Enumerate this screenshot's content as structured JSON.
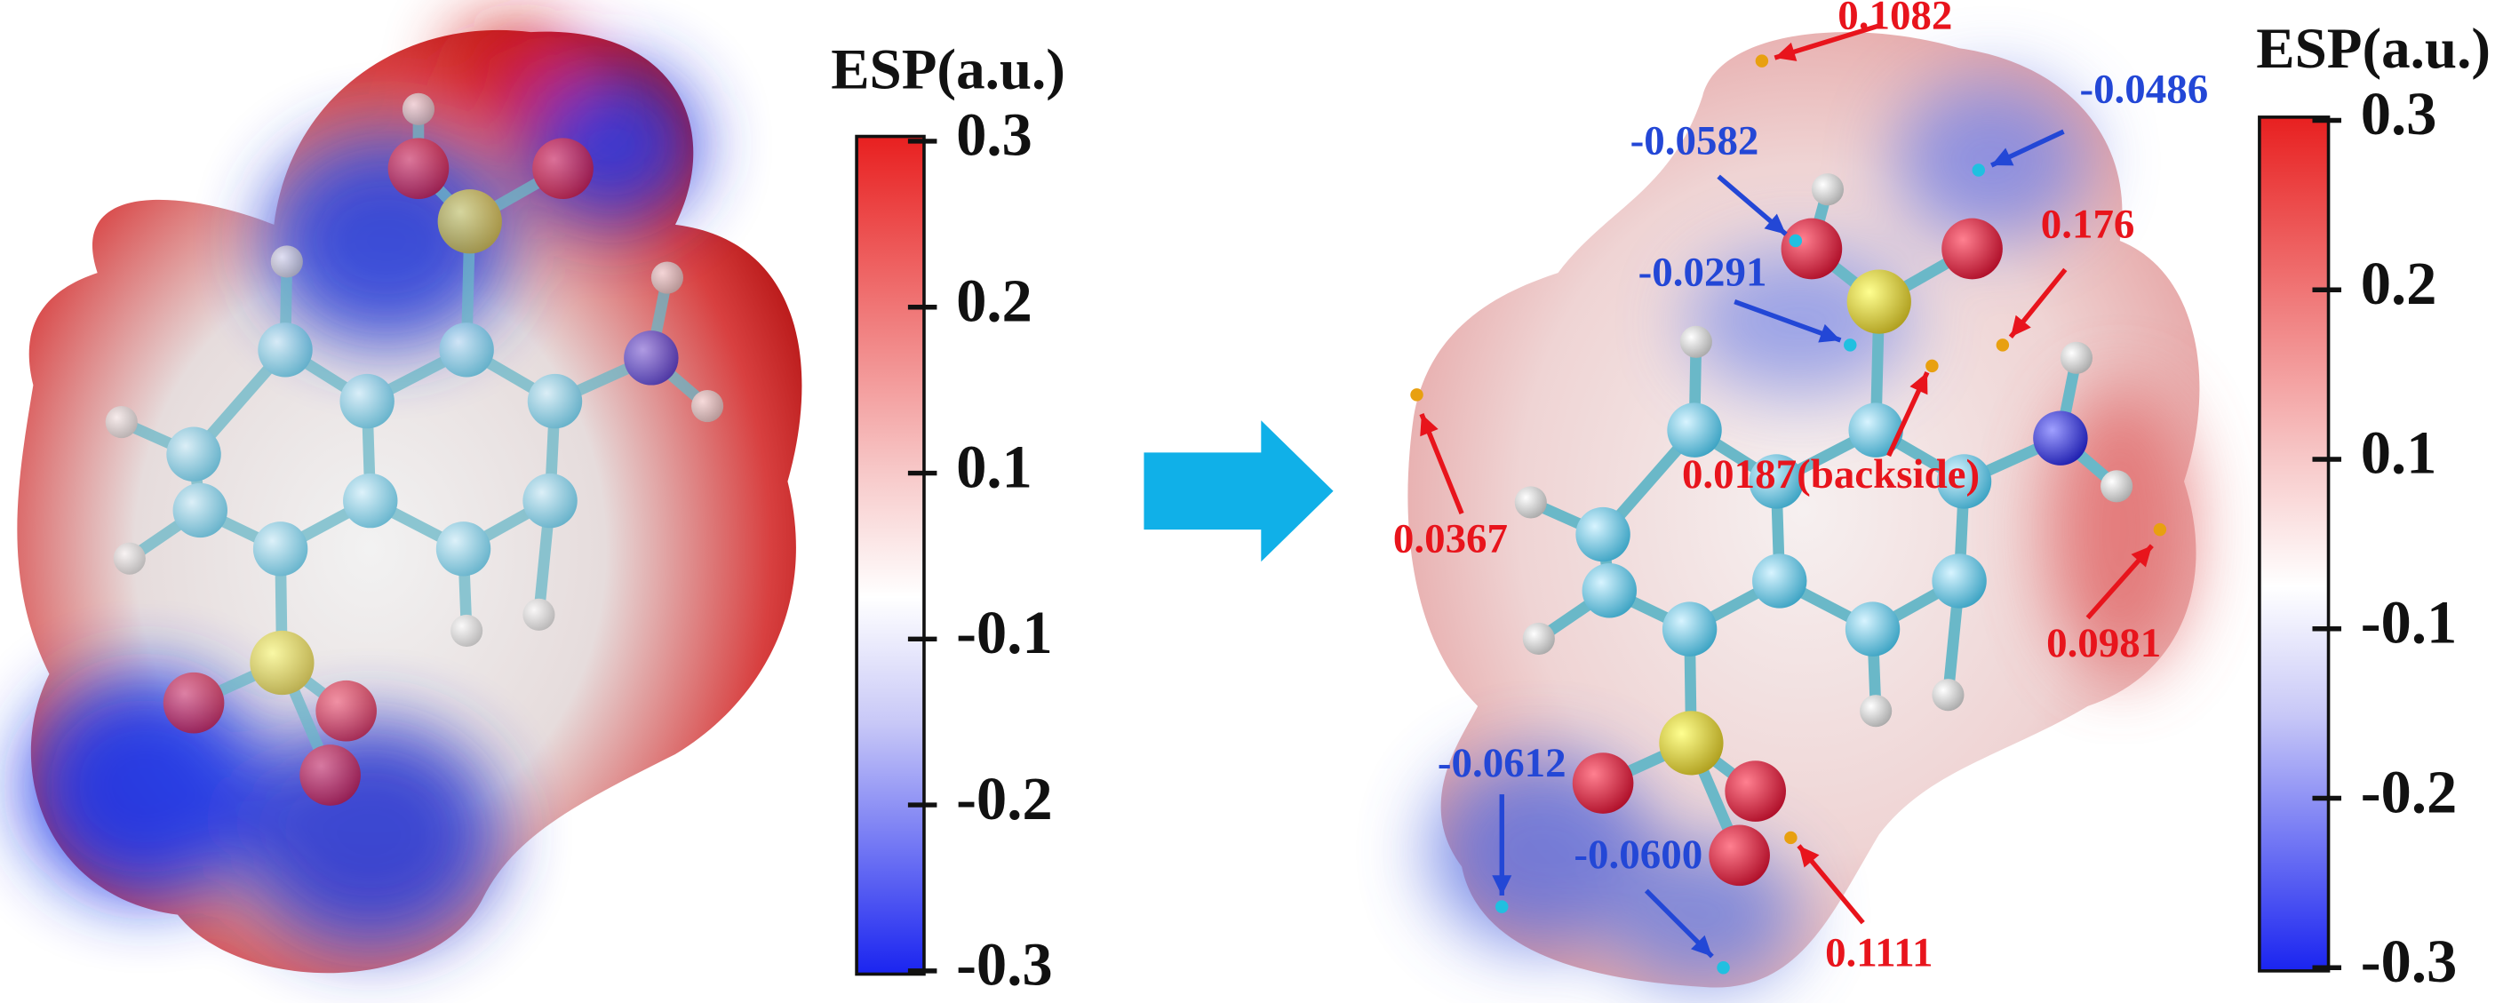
{
  "panels": [
    {
      "colorbar": {
        "title": "ESP(a.u.)",
        "ticks": [
          0.3,
          0.2,
          0.1,
          -0.1,
          -0.2,
          -0.3
        ]
      }
    },
    {
      "colorbar": {
        "title": "ESP(a.u.)",
        "ticks": [
          0.3,
          0.2,
          0.1,
          -0.1,
          -0.2,
          -0.3
        ]
      },
      "annotations": [
        {
          "text": "0.1082",
          "color": "#e8141c"
        },
        {
          "text": "-0.0486",
          "color": "#2347d6"
        },
        {
          "text": "-0.0582",
          "color": "#2347d6"
        },
        {
          "text": "0.176",
          "color": "#e8141c"
        },
        {
          "text": "-0.0291",
          "color": "#2347d6"
        },
        {
          "text": "0.0187(backside)",
          "color": "#e8141c"
        },
        {
          "text": "0.0367",
          "color": "#e8141c"
        },
        {
          "text": "0.0981",
          "color": "#e8141c"
        },
        {
          "text": "-0.0612",
          "color": "#2347d6"
        },
        {
          "text": "-0.0600",
          "color": "#2347d6"
        },
        {
          "text": "0.1111",
          "color": "#e8141c"
        }
      ]
    }
  ]
}
